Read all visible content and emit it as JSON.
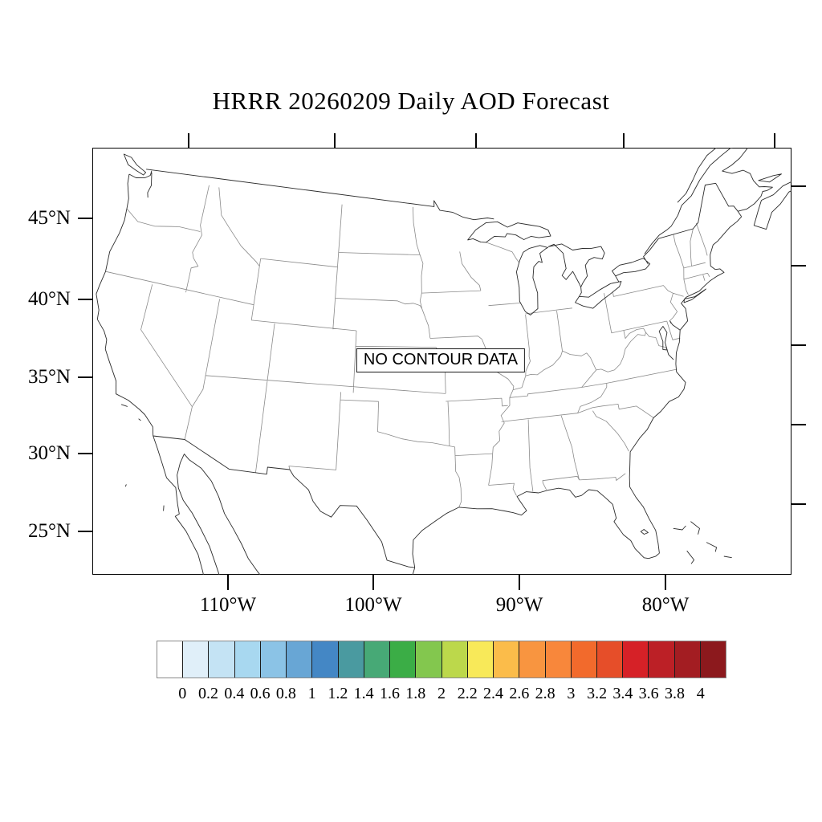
{
  "title": "HRRR 20260209 Daily AOD Forecast",
  "map": {
    "no_data_label": "NO CONTOUR DATA",
    "lat_tick_labels": [
      "45°N",
      "40°N",
      "35°N",
      "30°N",
      "25°N"
    ],
    "lon_tick_labels": [
      "110°W",
      "100°W",
      "90°W",
      "80°W"
    ]
  },
  "colorbar": {
    "tick_labels": [
      "0",
      "0.2",
      "0.4",
      "0.6",
      "0.8",
      "1",
      "1.2",
      "1.4",
      "1.6",
      "1.8",
      "2",
      "2.2",
      "2.4",
      "2.6",
      "2.8",
      "3",
      "3.2",
      "3.4",
      "3.6",
      "3.8",
      "4"
    ],
    "colors": [
      "#FFFFFF",
      "#E0EFF9",
      "#C4E3F4",
      "#A8D8F0",
      "#8BC3E6",
      "#68A6D5",
      "#4487C5",
      "#4A9AA0",
      "#47A976",
      "#3BAD46",
      "#83C74E",
      "#BCD84B",
      "#F8E959",
      "#FBBC4A",
      "#F89540",
      "#F8873B",
      "#F26A2C",
      "#E64E29",
      "#D62127",
      "#BC2026",
      "#A31D22",
      "#8C191D"
    ]
  },
  "chart_data": {
    "type": "heatmap",
    "title": "HRRR 20260209 Daily AOD Forecast",
    "region": "Continental United States map (conic projection) with state and coastline outlines",
    "annotation": "NO CONTOUR DATA",
    "data": null,
    "x_tick_labels": [
      "110°W",
      "100°W",
      "90°W",
      "80°W"
    ],
    "y_tick_labels": [
      "45°N",
      "40°N",
      "35°N",
      "30°N",
      "25°N"
    ],
    "colorbar_levels": [
      0,
      0.2,
      0.4,
      0.6,
      0.8,
      1,
      1.2,
      1.4,
      1.6,
      1.8,
      2,
      2.2,
      2.4,
      2.6,
      2.8,
      3,
      3.2,
      3.4,
      3.6,
      3.8,
      4
    ],
    "colorbar_colors": [
      "#FFFFFF",
      "#E0EFF9",
      "#C4E3F4",
      "#A8D8F0",
      "#8BC3E6",
      "#68A6D5",
      "#4487C5",
      "#4A9AA0",
      "#47A976",
      "#3BAD46",
      "#83C74E",
      "#BCD84B",
      "#F8E959",
      "#FBBC4A",
      "#F89540",
      "#F8873B",
      "#F26A2C",
      "#E64E29",
      "#D62127",
      "#BC2026",
      "#A31D22",
      "#8C191D"
    ],
    "legend_position": "bottom",
    "grid": false
  }
}
